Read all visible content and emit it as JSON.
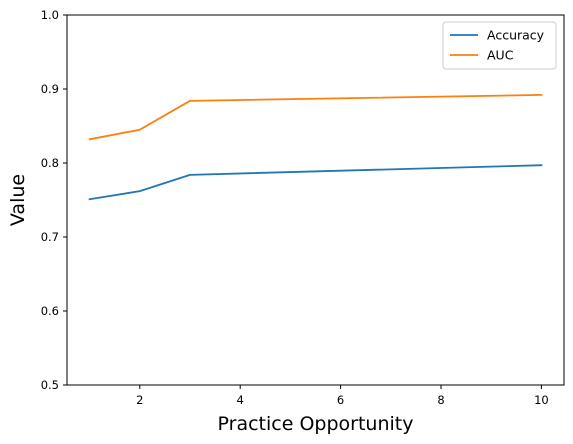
{
  "chart_data": {
    "type": "line",
    "title": "",
    "xlabel": "Practice Opportunity",
    "ylabel": "Value",
    "xlim": [
      0.55,
      10.45
    ],
    "ylim": [
      0.5,
      1.0
    ],
    "xticks": [
      2,
      4,
      6,
      8,
      10
    ],
    "yticks": [
      0.5,
      0.6,
      0.7,
      0.8,
      0.9,
      1.0
    ],
    "xtick_labels": [
      "2",
      "4",
      "6",
      "8",
      "10"
    ],
    "ytick_labels": [
      "0.5",
      "0.6",
      "0.7",
      "0.8",
      "0.9",
      "1.0"
    ],
    "grid": false,
    "legend_position": "top-right",
    "x": [
      1,
      2,
      3,
      10
    ],
    "series": [
      {
        "name": "Accuracy",
        "color": "#1f77b4",
        "values": [
          0.751,
          0.762,
          0.784,
          0.797
        ]
      },
      {
        "name": "AUC",
        "color": "#ff7f0e",
        "values": [
          0.832,
          0.845,
          0.884,
          0.892
        ]
      }
    ]
  }
}
